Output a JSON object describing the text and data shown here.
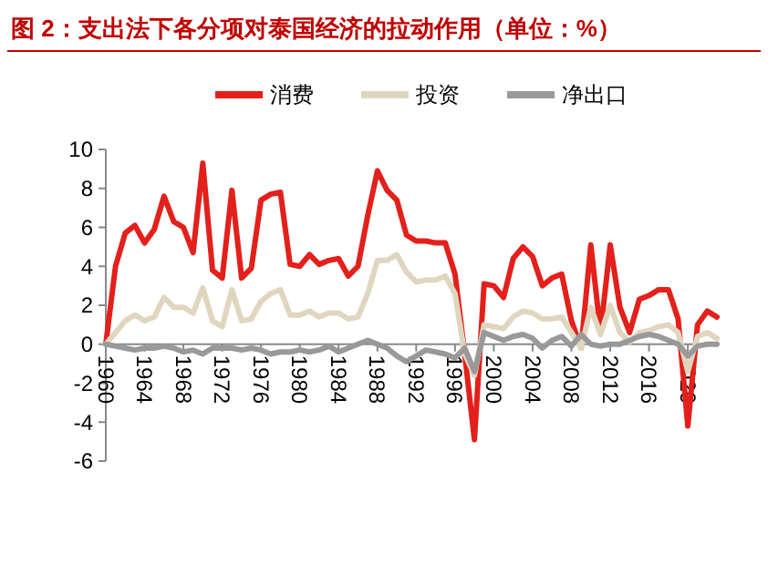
{
  "chart_data": {
    "type": "line",
    "title": "图 2：支出法下各分项对泰国经济的拉动作用（单位：%）",
    "x": [
      1960,
      1961,
      1962,
      1963,
      1964,
      1965,
      1966,
      1967,
      1968,
      1969,
      1970,
      1971,
      1972,
      1973,
      1974,
      1975,
      1976,
      1977,
      1978,
      1979,
      1980,
      1981,
      1982,
      1983,
      1984,
      1985,
      1986,
      1987,
      1988,
      1989,
      1990,
      1991,
      1992,
      1993,
      1994,
      1995,
      1996,
      1997,
      1998,
      1999,
      2000,
      2001,
      2002,
      2003,
      2004,
      2005,
      2006,
      2007,
      2008,
      2009,
      2010,
      2011,
      2012,
      2013,
      2014,
      2015,
      2016,
      2017,
      2018,
      2019,
      2020,
      2021,
      2022,
      2023
    ],
    "series": [
      {
        "name": "消费",
        "color": "#e3201b",
        "values": [
          0,
          4.0,
          5.7,
          6.1,
          5.2,
          5.9,
          7.6,
          6.3,
          6.0,
          4.7,
          9.3,
          3.8,
          3.4,
          7.9,
          3.4,
          3.9,
          7.4,
          7.7,
          7.8,
          4.1,
          4.0,
          4.6,
          4.1,
          4.3,
          4.4,
          3.5,
          4.0,
          6.6,
          8.9,
          7.9,
          7.4,
          5.6,
          5.3,
          5.3,
          5.2,
          5.2,
          3.6,
          -0.5,
          -4.9,
          3.1,
          3.0,
          2.4,
          4.4,
          5.0,
          4.5,
          3.0,
          3.4,
          3.6,
          1.2,
          -0.2,
          5.1,
          0.6,
          5.1,
          1.9,
          0.6,
          2.3,
          2.5,
          2.8,
          2.8,
          1.3,
          -4.2,
          1.0,
          1.7,
          1.4
        ]
      },
      {
        "name": "投资",
        "color": "#e0d6bf",
        "values": [
          0,
          0.6,
          1.2,
          1.5,
          1.2,
          1.4,
          2.4,
          1.9,
          1.9,
          1.6,
          2.9,
          1.2,
          0.9,
          2.8,
          1.2,
          1.3,
          2.2,
          2.6,
          2.8,
          1.5,
          1.5,
          1.7,
          1.4,
          1.6,
          1.6,
          1.3,
          1.4,
          2.6,
          4.3,
          4.3,
          4.6,
          3.7,
          3.2,
          3.3,
          3.3,
          3.5,
          2.6,
          -0.5,
          -1.6,
          1.0,
          0.9,
          0.8,
          1.4,
          1.7,
          1.6,
          1.3,
          1.3,
          1.4,
          0.6,
          -0.2,
          1.9,
          0.5,
          2.0,
          0.6,
          0.1,
          0.6,
          0.7,
          0.9,
          1.0,
          0.6,
          -1.4,
          0.4,
          0.6,
          0.3
        ]
      },
      {
        "name": "净出口",
        "color": "#999999",
        "values": [
          0,
          -0.1,
          -0.2,
          -0.3,
          -0.2,
          -0.2,
          -0.1,
          -0.2,
          -0.4,
          -0.3,
          -0.5,
          -0.2,
          -0.2,
          -0.2,
          -0.3,
          -0.2,
          -0.3,
          -0.5,
          -0.4,
          -0.4,
          -0.3,
          -0.4,
          -0.3,
          -0.1,
          -0.4,
          -0.2,
          0.0,
          0.2,
          0.0,
          -0.2,
          -0.6,
          -0.9,
          -0.6,
          -0.3,
          -0.4,
          -0.5,
          -0.7,
          -0.2,
          -1.4,
          0.6,
          0.4,
          0.2,
          0.4,
          0.5,
          0.3,
          -0.2,
          0.2,
          0.4,
          -0.1,
          0.5,
          0.0,
          -0.1,
          0.0,
          0.0,
          0.2,
          0.4,
          0.5,
          0.4,
          0.2,
          0.0,
          -0.6,
          -0.1,
          0.0,
          0.0
        ]
      }
    ],
    "xlim": [
      1960,
      2023
    ],
    "xticks": [
      1960,
      1964,
      1968,
      1972,
      1976,
      1980,
      1984,
      1988,
      1992,
      1996,
      2000,
      2004,
      2008,
      2012,
      2016,
      2020
    ],
    "ylim": [
      -6,
      10
    ],
    "yticks": [
      -6,
      -4,
      -2,
      0,
      2,
      4,
      6,
      8,
      10
    ],
    "legend": "top",
    "grid": false,
    "marker": "none",
    "line_style": "solid"
  }
}
